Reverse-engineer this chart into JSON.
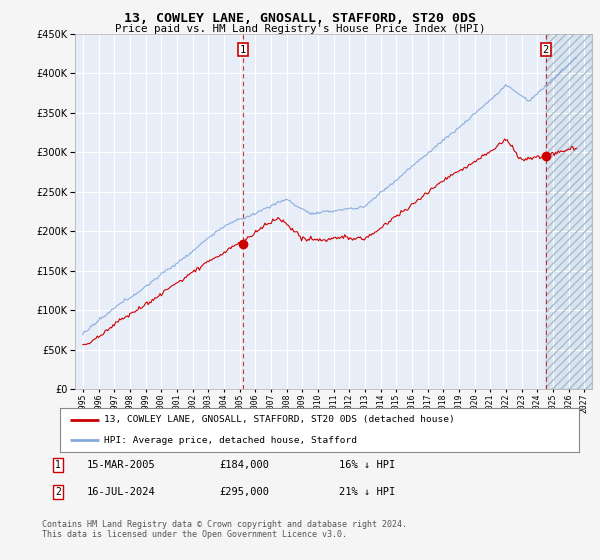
{
  "title": "13, COWLEY LANE, GNOSALL, STAFFORD, ST20 0DS",
  "subtitle": "Price paid vs. HM Land Registry's House Price Index (HPI)",
  "legend_line1": "13, COWLEY LANE, GNOSALL, STAFFORD, ST20 0DS (detached house)",
  "legend_line2": "HPI: Average price, detached house, Stafford",
  "footnote": "Contains HM Land Registry data © Crown copyright and database right 2024.\nThis data is licensed under the Open Government Licence v3.0.",
  "transaction1_date": "15-MAR-2005",
  "transaction1_price": "£184,000",
  "transaction1_hpi": "16% ↓ HPI",
  "transaction2_date": "16-JUL-2024",
  "transaction2_price": "£295,000",
  "transaction2_hpi": "21% ↓ HPI",
  "marker1_x": 2005.21,
  "marker1_y": 184000,
  "marker2_x": 2024.54,
  "marker2_y": 295000,
  "ylim": [
    0,
    450000
  ],
  "xlim": [
    1994.5,
    2027.5
  ],
  "red_color": "#cc0000",
  "blue_color": "#88aadd",
  "plot_bg_color": "#e8eef8",
  "hatch_bg_color": "#d8e4f0",
  "grid_color": "#ffffff",
  "background_color": "#f0f0f0"
}
